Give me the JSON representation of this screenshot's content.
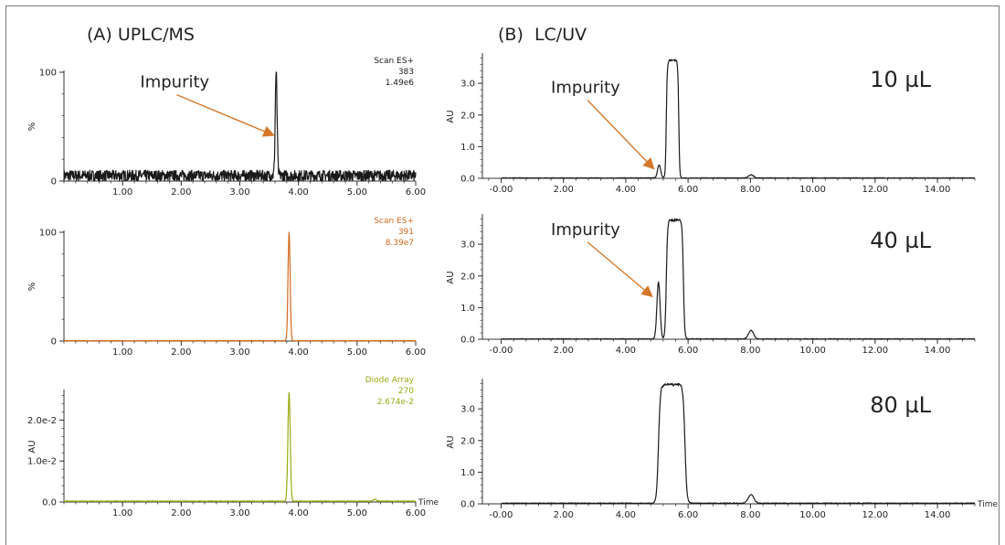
{
  "panels": {
    "a_title": "(A) UPLC/MS",
    "b_title": "(B)  LC/UV"
  },
  "colors": {
    "black_trace": "#1a1a1a",
    "orange_trace": "#d4691e",
    "olive_trace": "#9aaa12",
    "arrow": "#d4782a",
    "axis": "#333333"
  },
  "chart_data": [
    {
      "id": "a1",
      "type": "line",
      "xlim": [
        0,
        6
      ],
      "ylim": [
        0,
        100
      ],
      "xticks": [
        1,
        2,
        3,
        4,
        5,
        6
      ],
      "xtick_labels": [
        "1.00",
        "2.00",
        "3.00",
        "4.00",
        "5.00",
        "6.00"
      ],
      "yticks": [
        0,
        100
      ],
      "ytick_labels": [
        "0",
        "100"
      ],
      "ylabel": "%",
      "xlabel": "",
      "info": [
        "Scan ES+",
        "383",
        "1.49e6"
      ],
      "info_color": "#1a1a1a",
      "color": "#1a1a1a",
      "baseline": 5,
      "noise": 5,
      "peaks": [
        {
          "x": 3.62,
          "h": 96,
          "w": 0.016
        }
      ],
      "annotation": {
        "text": "Impurity",
        "tx": 1.3,
        "ty": 86,
        "ax": 3.58,
        "ay": 42
      }
    },
    {
      "id": "a2",
      "type": "line",
      "xlim": [
        0,
        6
      ],
      "ylim": [
        0,
        100
      ],
      "xticks": [
        1,
        2,
        3,
        4,
        5,
        6
      ],
      "xtick_labels": [
        "1.00",
        "2.00",
        "3.00",
        "4.00",
        "5.00",
        "6.00"
      ],
      "yticks": [
        0,
        100
      ],
      "ytick_labels": [
        "0",
        "100"
      ],
      "ylabel": "%",
      "xlabel": "",
      "info": [
        "Scan ES+",
        "391",
        "8.39e7"
      ],
      "info_color": "#d4691e",
      "color": "#d4691e",
      "baseline": 0.3,
      "noise": 0.2,
      "peaks": [
        {
          "x": 3.84,
          "h": 100,
          "w": 0.018
        }
      ]
    },
    {
      "id": "a3",
      "type": "line",
      "xlim": [
        0,
        6
      ],
      "ylim": [
        0,
        0.027
      ],
      "xticks": [
        1,
        2,
        3,
        4,
        5,
        6
      ],
      "xtick_labels": [
        "1.00",
        "2.00",
        "3.00",
        "4.00",
        "5.00",
        "6.00"
      ],
      "yticks": [
        0,
        0.01,
        0.02
      ],
      "ytick_labels": [
        "0.0",
        "1.0e-2",
        "2.0e-2"
      ],
      "ylabel": "AU",
      "xlabel": "Time",
      "info": [
        "Diode Array",
        "270",
        "2.674e-2"
      ],
      "info_color": "#9aaa12",
      "color": "#9aaa12",
      "baseline": 0.0002,
      "noise": 8e-05,
      "peaks": [
        {
          "x": 3.84,
          "h": 0.0265,
          "w": 0.02
        },
        {
          "x": 5.3,
          "h": 0.0004,
          "w": 0.03
        }
      ]
    },
    {
      "id": "b1",
      "type": "line",
      "xlim": [
        -0.6,
        15.2
      ],
      "ylim": [
        0,
        3.9
      ],
      "xticks": [
        0,
        2,
        4,
        6,
        8,
        10,
        12,
        14
      ],
      "xtick_labels": [
        "-0.00",
        "2.00",
        "4.00",
        "6.00",
        "8.00",
        "10.00",
        "12.00",
        "14.00"
      ],
      "yticks": [
        0,
        1,
        2,
        3
      ],
      "ytick_labels": [
        "0.0",
        "1.0",
        "2.0",
        "3.0"
      ],
      "ylabel": "AU",
      "xlabel": "",
      "volume": "10 µL",
      "color": "#1a1a1a",
      "baseline": 0.01,
      "noise": 0.01,
      "plateau": {
        "x0": 5.3,
        "x1": 5.7,
        "h": 3.72,
        "edge": 0.06
      },
      "peaks": [
        {
          "x": 5.07,
          "h": 0.42,
          "w": 0.05
        },
        {
          "x": 8.02,
          "h": 0.1,
          "w": 0.08
        }
      ],
      "annotation": {
        "text": "Impurity",
        "tx": 1.6,
        "ty": 2.7,
        "ax": 4.9,
        "ay": 0.3
      }
    },
    {
      "id": "b2",
      "type": "line",
      "xlim": [
        -0.6,
        15.2
      ],
      "ylim": [
        0,
        3.9
      ],
      "xticks": [
        0,
        2,
        4,
        6,
        8,
        10,
        12,
        14
      ],
      "xtick_labels": [
        "-0.00",
        "2.00",
        "4.00",
        "6.00",
        "8.00",
        "10.00",
        "12.00",
        "14.00"
      ],
      "yticks": [
        0,
        1,
        2,
        3
      ],
      "ytick_labels": [
        "0.0",
        "1.0",
        "2.0",
        "3.0"
      ],
      "ylabel": "AU",
      "xlabel": "",
      "volume": "40 µL",
      "color": "#1a1a1a",
      "baseline": 0.01,
      "noise": 0.01,
      "plateau": {
        "x0": 5.3,
        "x1": 5.85,
        "h": 3.75,
        "edge": 0.08
      },
      "peaks": [
        {
          "x": 5.05,
          "h": 1.8,
          "w": 0.05
        },
        {
          "x": 8.02,
          "h": 0.27,
          "w": 0.08
        }
      ],
      "annotation": {
        "text": "Impurity",
        "tx": 1.6,
        "ty": 3.3,
        "ax": 4.85,
        "ay": 1.35
      }
    },
    {
      "id": "b3",
      "type": "line",
      "xlim": [
        -0.6,
        15.2
      ],
      "ylim": [
        0,
        3.9
      ],
      "xticks": [
        0,
        2,
        4,
        6,
        8,
        10,
        12,
        14
      ],
      "xtick_labels": [
        "-0.00",
        "2.00",
        "4.00",
        "6.00",
        "8.00",
        "10.00",
        "12.00",
        "14.00"
      ],
      "yticks": [
        0,
        1,
        2,
        3
      ],
      "ytick_labels": [
        "0.0",
        "1.0",
        "2.0",
        "3.0"
      ],
      "ylabel": "AU",
      "xlabel": "Time",
      "volume": "80 µL",
      "color": "#1a1a1a",
      "baseline": 0.02,
      "noise": 0.012,
      "plateau": {
        "x0": 5.05,
        "x1": 5.9,
        "h": 3.75,
        "edge": 0.12
      },
      "peaks": [
        {
          "x": 8.02,
          "h": 0.27,
          "w": 0.09
        }
      ]
    }
  ]
}
